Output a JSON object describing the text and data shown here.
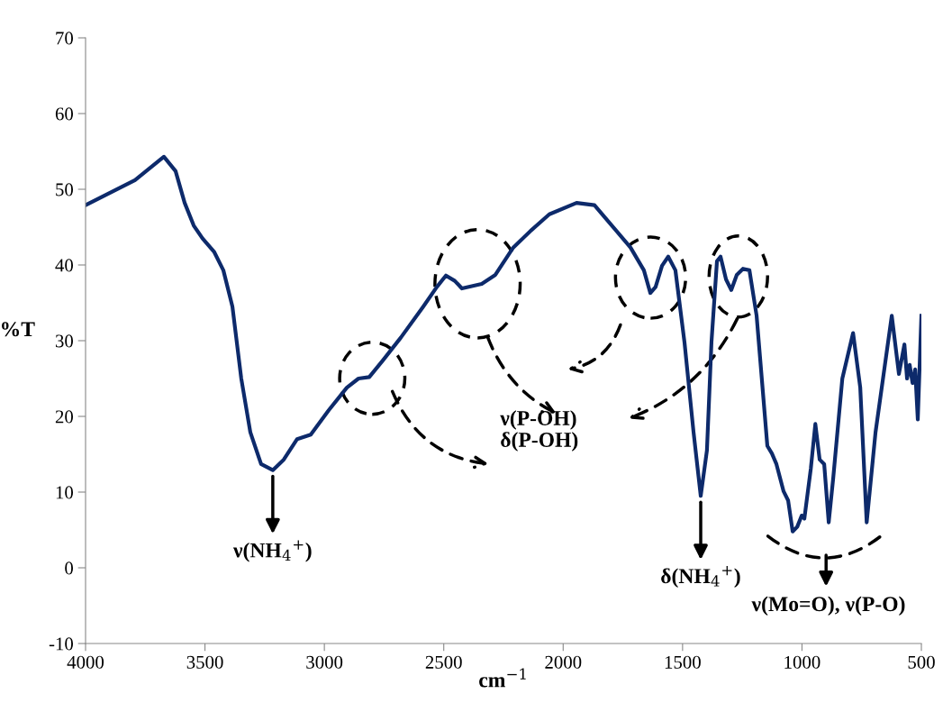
{
  "chart_data": {
    "type": "line",
    "xlabel": "cm$^{−1}$",
    "ylabel": "%T",
    "xlim": [
      4000,
      500
    ],
    "xticks": [
      4000,
      3500,
      3000,
      2500,
      2000,
      1500,
      1000,
      500
    ],
    "ylim": [
      -10,
      70
    ],
    "yticks": [
      -10,
      0,
      10,
      20,
      30,
      40,
      50,
      60,
      70
    ],
    "grid": false,
    "series": [
      {
        "color": "#0d2a6b",
        "x": [
          4000,
          3793,
          3672,
          3623,
          3585,
          3547,
          3510,
          3461,
          3423,
          3385,
          3348,
          3310,
          3265,
          3216,
          3170,
          3114,
          3057,
          2982,
          2906,
          2857,
          2812,
          2755,
          2680,
          2586,
          2529,
          2491,
          2454,
          2424,
          2341,
          2284,
          2209,
          2133,
          2058,
          1944,
          1869,
          1812,
          1718,
          1662,
          1635,
          1613,
          1586,
          1560,
          1530,
          1492,
          1454,
          1424,
          1398,
          1379,
          1356,
          1341,
          1318,
          1296,
          1273,
          1247,
          1220,
          1190,
          1145,
          1126,
          1107,
          1077,
          1058,
          1039,
          1020,
          1001,
          990,
          963,
          944,
          926,
          907,
          888,
          869,
          831,
          786,
          756,
          729,
          692,
          624,
          594,
          571,
          560,
          549,
          537,
          526,
          515,
          500
        ],
        "values": [
          47.9,
          51.2,
          54.3,
          52.4,
          48.2,
          45.2,
          43.5,
          41.7,
          39.3,
          34.5,
          25,
          17.9,
          13.7,
          12.9,
          14.3,
          17.0,
          17.6,
          20.8,
          23.8,
          25,
          25.2,
          27.4,
          30.4,
          34.5,
          37.1,
          38.6,
          37.9,
          36.9,
          37.5,
          38.7,
          42.3,
          44.6,
          46.7,
          48.2,
          47.9,
          45.8,
          42.3,
          39.3,
          36.3,
          37.1,
          39.9,
          41.1,
          39.3,
          29.8,
          17.9,
          9.5,
          15.5,
          29.8,
          40.5,
          41.1,
          38.1,
          36.7,
          38.7,
          39.5,
          39.3,
          33.3,
          16.1,
          15.1,
          13.7,
          10.1,
          8.9,
          4.8,
          5.4,
          6.9,
          6.5,
          13.1,
          19.0,
          14.3,
          13.7,
          6.0,
          11.9,
          25,
          31.0,
          23.8,
          6.0,
          17.9,
          33.3,
          25.6,
          29.5,
          25,
          26.8,
          24.4,
          26.2,
          19.6,
          33.3
        ]
      }
    ],
    "annotations": [
      {
        "text": "ν(NH$_{4}$$^{+}$)",
        "x": 3216,
        "y": 12.9
      },
      "ν(P-OH)\nδ(P-OH)",
      {
        "text": "δ(NH$_{4}$$^{+}$)",
        "x": 1424,
        "y": 9.5
      },
      "ν(Mo=O), ν(P-O)"
    ]
  }
}
